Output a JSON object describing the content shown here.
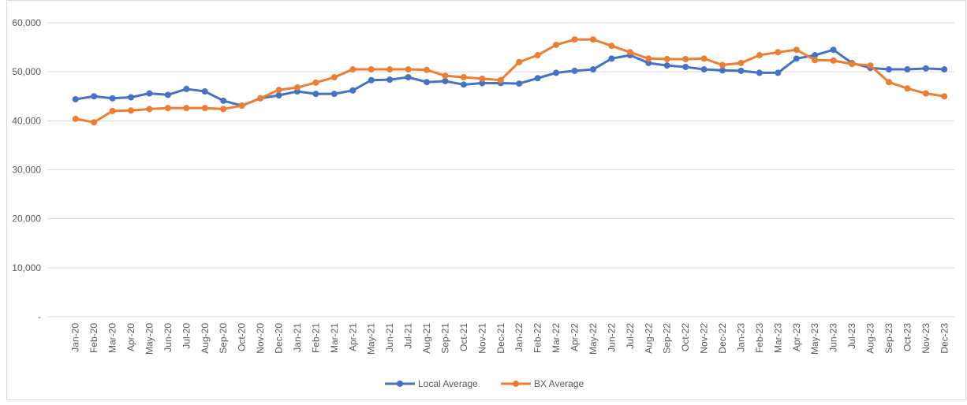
{
  "chart_data": {
    "type": "line",
    "categories": [
      "Jan-20",
      "Feb-20",
      "Mar-20",
      "Apr-20",
      "May-20",
      "Jun-20",
      "Jul-20",
      "Aug-20",
      "Sep-20",
      "Oct-20",
      "Nov-20",
      "Dec-20",
      "Jan-21",
      "Feb-21",
      "Mar-21",
      "Apr-21",
      "May-21",
      "Jun-21",
      "Jul-21",
      "Aug-21",
      "Sep-21",
      "Oct-21",
      "Nov-21",
      "Dec-21",
      "Jan-22",
      "Feb-22",
      "Mar-22",
      "Apr-22",
      "May-22",
      "Jun-22",
      "Jul-22",
      "Aug-22",
      "Sep-22",
      "Oct-22",
      "Nov-22",
      "Dec-22",
      "Jan-23",
      "Feb-23",
      "Mar-23",
      "Apr-23",
      "May-23",
      "Jun-23",
      "Jul-23",
      "Aug-23",
      "Sep-23",
      "Oct-23",
      "Nov-23",
      "Dec-23"
    ],
    "series": [
      {
        "name": "Local Average",
        "color": "#4472c4",
        "values": [
          44400,
          45000,
          44600,
          44800,
          45600,
          45300,
          46500,
          46000,
          44100,
          43100,
          44600,
          45200,
          46000,
          45500,
          45500,
          46200,
          48300,
          48400,
          48900,
          47900,
          48100,
          47400,
          47700,
          47700,
          47600,
          48700,
          49800,
          50200,
          50500,
          52700,
          53400,
          51800,
          51300,
          51000,
          50500,
          50300,
          50200,
          49800,
          49800,
          52700,
          53400,
          54500,
          51800,
          50800,
          50500,
          50500,
          50700,
          50500
        ]
      },
      {
        "name": "BX Average",
        "color": "#ed7d31",
        "values": [
          40400,
          39700,
          42000,
          42100,
          42400,
          42600,
          42600,
          42600,
          42400,
          43100,
          44600,
          46300,
          46800,
          47800,
          48900,
          50500,
          50500,
          50500,
          50500,
          50400,
          49200,
          48900,
          48600,
          48300,
          52000,
          53400,
          55500,
          56600,
          56600,
          55300,
          54000,
          52700,
          52600,
          52600,
          52700,
          51400,
          51800,
          53400,
          54000,
          54500,
          52400,
          52300,
          51600,
          51300,
          47900,
          46600,
          45600,
          45000
        ]
      }
    ],
    "ylim": [
      0,
      60000
    ],
    "yticks": [
      {
        "value": 0,
        "label": "-"
      },
      {
        "value": 10000,
        "label": "10,000"
      },
      {
        "value": 20000,
        "label": "20,000"
      },
      {
        "value": 30000,
        "label": "30,000"
      },
      {
        "value": 40000,
        "label": "40,000"
      },
      {
        "value": 50000,
        "label": "50,000"
      },
      {
        "value": 60000,
        "label": "60,000"
      }
    ],
    "grid": true,
    "legend": "bottom"
  }
}
